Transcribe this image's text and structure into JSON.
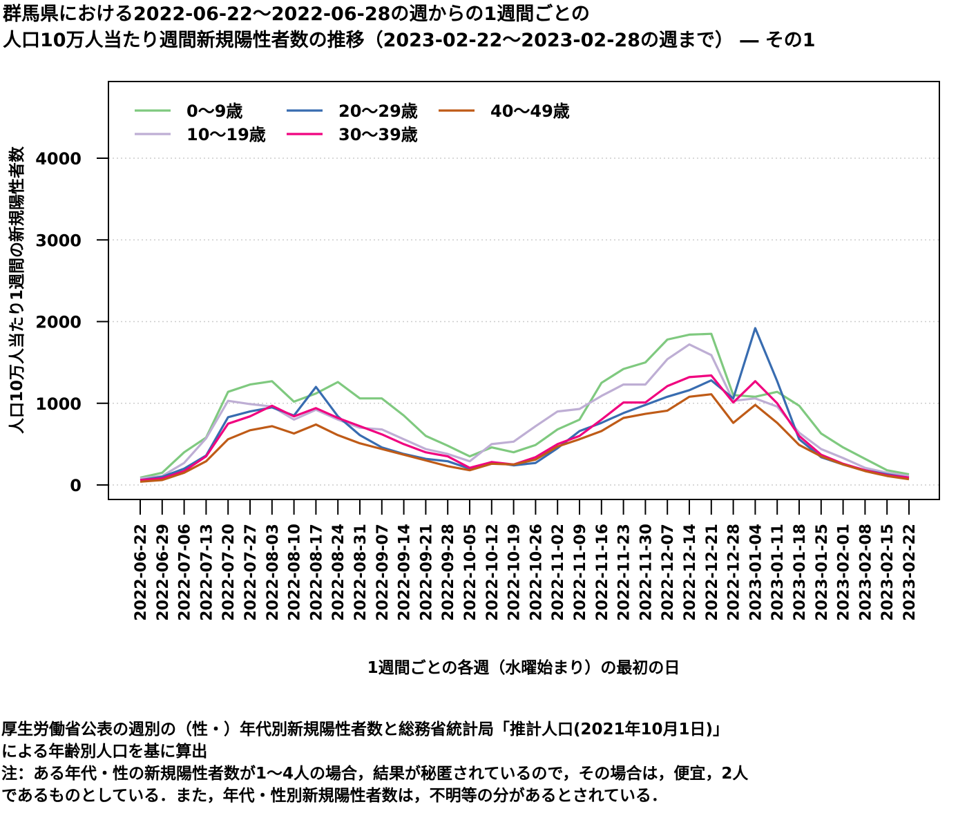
{
  "title": {
    "line1": "群馬県における2022-06-22～2022-06-28の週からの1週間ごとの",
    "line2": "人口10万人当たり週間新規陽性者数の推移（2023-02-22～2023-02-28の週まで） ― その1"
  },
  "notes": {
    "line1": "厚生労働省公表の週別の（性・）年代別新規陽性者数と総務省統計局「推計人口(2021年10月1日)」",
    "line2": "による年齢別人口を基に算出",
    "line3": "注：ある年代・性の新規陽性者数が1～4人の場合，結果が秘匿されているので，その場合は，便宜，2人",
    "line4": "であるものとしている．また，年代・性別新規陽性者数は，不明等の分があるとされている．"
  },
  "chart_data": {
    "type": "line",
    "xlabel": "1週間ごとの各週（水曜始まり）の最初の日",
    "ylabel": "人口10万人当たり1週間の新規陽性者数",
    "ylim": [
      0,
      5000
    ],
    "yticks": [
      0,
      1000,
      2000,
      3000,
      4000
    ],
    "grid": "horizontal dotted",
    "legend_position": "top-left",
    "categories": [
      "2022-06-22",
      "2022-06-29",
      "2022-07-06",
      "2022-07-13",
      "2022-07-20",
      "2022-07-27",
      "2022-08-03",
      "2022-08-10",
      "2022-08-17",
      "2022-08-24",
      "2022-08-31",
      "2022-09-07",
      "2022-09-14",
      "2022-09-21",
      "2022-09-28",
      "2022-10-05",
      "2022-10-12",
      "2022-10-19",
      "2022-10-26",
      "2022-11-02",
      "2022-11-09",
      "2022-11-16",
      "2022-11-23",
      "2022-11-30",
      "2022-12-07",
      "2022-12-14",
      "2022-12-21",
      "2022-12-28",
      "2023-01-04",
      "2023-01-11",
      "2023-01-18",
      "2023-01-25",
      "2023-02-01",
      "2023-02-08",
      "2023-02-15",
      "2023-02-22"
    ],
    "series": [
      {
        "name": "0～9歳",
        "color": "#7fc97f",
        "values": [
          90,
          150,
          400,
          580,
          1140,
          1230,
          1270,
          1020,
          1120,
          1260,
          1060,
          1060,
          850,
          600,
          480,
          350,
          460,
          400,
          490,
          680,
          800,
          1250,
          1420,
          1500,
          1780,
          1840,
          1850,
          1100,
          1080,
          1140,
          970,
          630,
          460,
          320,
          180,
          130
        ]
      },
      {
        "name": "10～19歳",
        "color": "#beaed4",
        "values": [
          80,
          110,
          270,
          570,
          1030,
          990,
          960,
          800,
          920,
          800,
          700,
          680,
          560,
          440,
          380,
          290,
          500,
          530,
          720,
          900,
          930,
          1090,
          1230,
          1230,
          1540,
          1720,
          1590,
          1030,
          1060,
          960,
          640,
          440,
          330,
          210,
          150,
          110
        ]
      },
      {
        "name": "20～29歳",
        "color": "#386cb0",
        "values": [
          60,
          100,
          200,
          360,
          830,
          900,
          950,
          850,
          1200,
          840,
          610,
          460,
          380,
          320,
          290,
          200,
          280,
          240,
          270,
          450,
          660,
          760,
          880,
          980,
          1080,
          1160,
          1280,
          1060,
          1920,
          1270,
          560,
          340,
          250,
          180,
          130,
          90
        ]
      },
      {
        "name": "30～39歳",
        "color": "#f0027f",
        "values": [
          60,
          80,
          170,
          350,
          750,
          840,
          970,
          840,
          940,
          820,
          720,
          620,
          500,
          400,
          350,
          210,
          280,
          250,
          340,
          500,
          600,
          800,
          1010,
          1010,
          1210,
          1320,
          1340,
          1010,
          1270,
          1000,
          600,
          370,
          260,
          180,
          120,
          90
        ]
      },
      {
        "name": "40～49歳",
        "color": "#bf5b17",
        "values": [
          40,
          60,
          150,
          290,
          560,
          670,
          720,
          630,
          740,
          610,
          510,
          440,
          370,
          300,
          230,
          180,
          260,
          250,
          310,
          470,
          560,
          660,
          820,
          870,
          910,
          1080,
          1110,
          760,
          980,
          760,
          490,
          350,
          250,
          170,
          110,
          70
        ]
      }
    ]
  }
}
